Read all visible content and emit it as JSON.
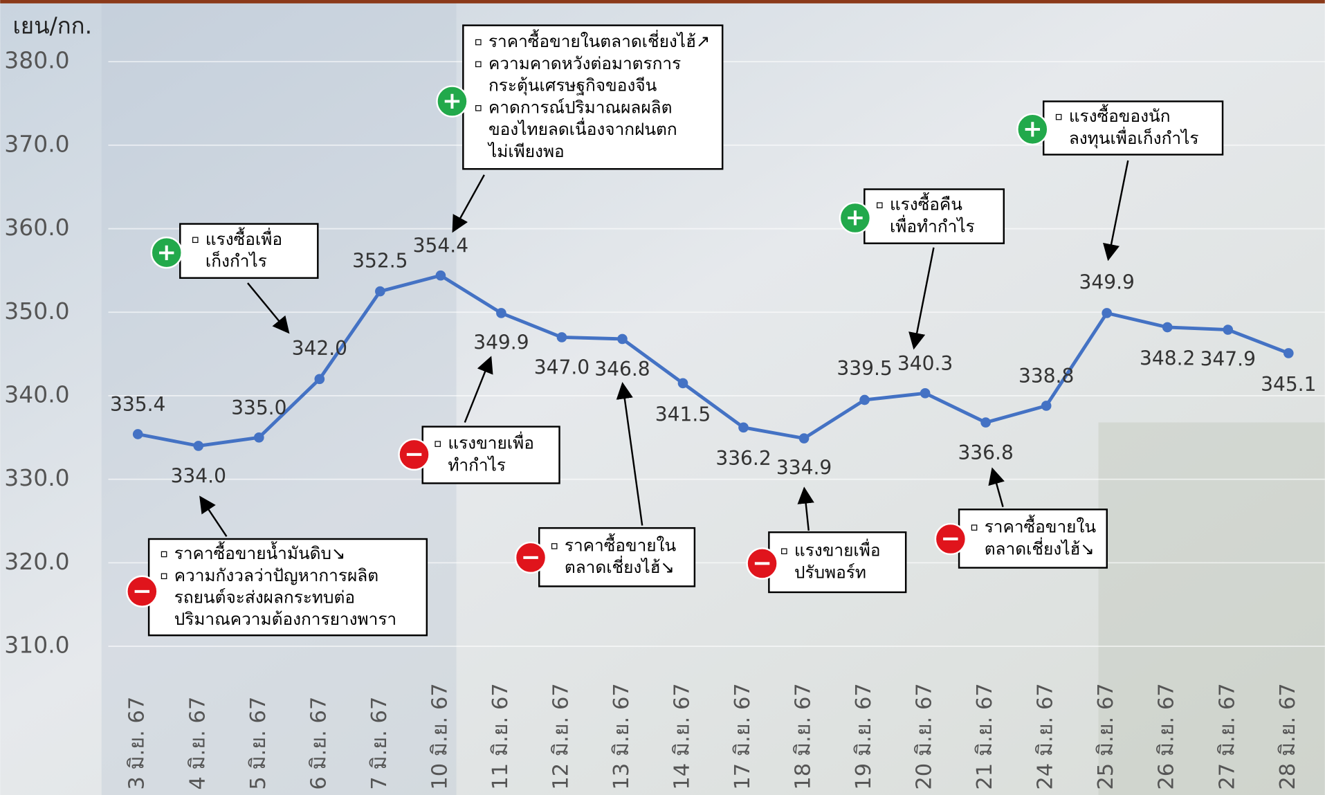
{
  "chart_data": {
    "type": "line",
    "y_label": "เยน/กก.",
    "categories": [
      "3 มิ.ย. 67",
      "4 มิ.ย. 67",
      "5 มิ.ย. 67",
      "6 มิ.ย. 67",
      "7 มิ.ย. 67",
      "10 มิ.ย. 67",
      "11 มิ.ย. 67",
      "12 มิ.ย. 67",
      "13 มิ.ย. 67",
      "14 มิ.ย. 67",
      "17 มิ.ย. 67",
      "18 มิ.ย. 67",
      "19 มิ.ย. 67",
      "20 มิ.ย. 67",
      "21 มิ.ย. 67",
      "24 มิ.ย. 67",
      "25 มิ.ย. 67",
      "26 มิ.ย. 67",
      "27 มิ.ย. 67",
      "28 มิ.ย. 67"
    ],
    "values": [
      335.4,
      334.0,
      335.0,
      342.0,
      352.5,
      354.4,
      349.9,
      347.0,
      346.8,
      341.5,
      336.2,
      334.9,
      339.5,
      340.3,
      336.8,
      338.8,
      349.9,
      348.2,
      347.9,
      345.1
    ],
    "value_labels": [
      "335.4",
      "334.0",
      "335.0",
      "342.0",
      "352.5",
      "354.4",
      "349.9",
      "347.0",
      "346.8",
      "341.5",
      "336.2",
      "334.9",
      "339.5",
      "340.3",
      "336.8",
      "338.8",
      "349.9",
      "348.2",
      "347.9",
      "345.1"
    ],
    "color": "#4472c4",
    "ylim": [
      310,
      380
    ],
    "yticks": [
      {
        "value": 310,
        "label": "310.0"
      },
      {
        "value": 320,
        "label": "320.0"
      },
      {
        "value": 330,
        "label": "330.0"
      },
      {
        "value": 340,
        "label": "340.0"
      },
      {
        "value": 350,
        "label": "350.0"
      },
      {
        "value": 360,
        "label": "360.0"
      },
      {
        "value": 370,
        "label": "370.0"
      },
      {
        "value": 380,
        "label": "380.0"
      }
    ],
    "grid": true,
    "annotations": [
      {
        "sign": "+",
        "items": [
          [
            "แรงซื้อเพื่อ",
            "เก็งกำไร"
          ]
        ]
      },
      {
        "sign": "+",
        "items": [
          [
            "ราคาซื้อขายในตลาดเชี่ยงไฮ้↗"
          ],
          [
            "ความคาดหวังต่อมาตรการ",
            "กระตุ้นเศรษฐกิจของจีน"
          ],
          [
            "คาดการณ์ปริมาณผลผลิต",
            "ของไทยลดเนื่องจากฝนตก",
            "ไม่เพียงพอ"
          ]
        ]
      },
      {
        "sign": "+",
        "items": [
          [
            "แรงซื้อของนัก",
            "ลงทุนเพื่อเก็งกำไร"
          ]
        ]
      },
      {
        "sign": "+",
        "items": [
          [
            "แรงซื้อคืน",
            "เพื่อทำกำไร"
          ]
        ]
      },
      {
        "sign": "−",
        "items": [
          [
            "แรงขายเพื่อ",
            "ทำกำไร"
          ]
        ]
      },
      {
        "sign": "−",
        "items": [
          [
            "ราคาซื้อขายน้ำมันดิบ↘"
          ],
          [
            "ความกังวลว่าปัญหาการผลิต",
            "รถยนต์จะส่งผลกระทบต่อ",
            "ปริมาณความต้องการยางพารา"
          ]
        ]
      },
      {
        "sign": "−",
        "items": [
          [
            "ราคาซื้อขายใน",
            "ตลาดเชี่ยงไฮ้↘"
          ]
        ]
      },
      {
        "sign": "−",
        "items": [
          [
            "แรงขายเพื่อ",
            "ปรับพอร์ท"
          ]
        ]
      },
      {
        "sign": "−",
        "items": [
          [
            "ราคาซื้อขายใน",
            "ตลาดเชี่ยงไฮ้↘"
          ]
        ]
      }
    ]
  }
}
